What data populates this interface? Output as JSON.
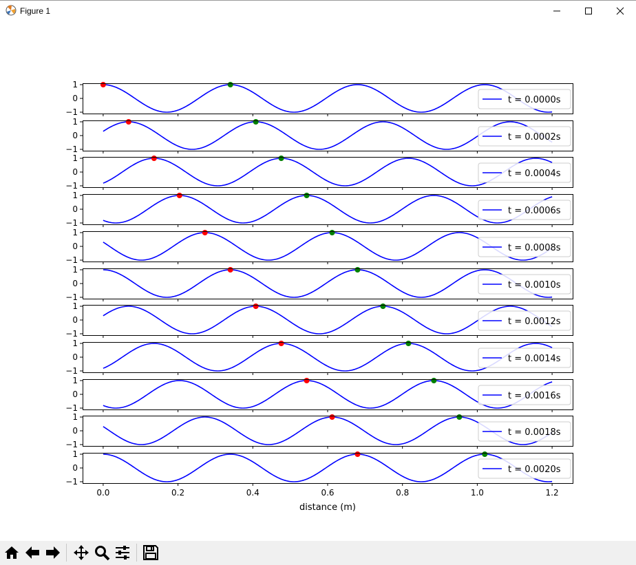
{
  "window": {
    "title": "Figure 1",
    "controls": [
      "minimize",
      "maximize",
      "close"
    ]
  },
  "toolbar": {
    "buttons": [
      {
        "name": "home",
        "icon": "home-icon"
      },
      {
        "name": "back",
        "icon": "arrow-left-icon"
      },
      {
        "name": "forward",
        "icon": "arrow-right-icon"
      },
      {
        "name": "pan",
        "icon": "move-icon"
      },
      {
        "name": "zoom",
        "icon": "magnifier-icon"
      },
      {
        "name": "configure-subplots",
        "icon": "sliders-icon"
      },
      {
        "name": "save",
        "icon": "floppy-disk-icon"
      }
    ]
  },
  "chart_data": {
    "type": "line",
    "xlabel": "distance (m)",
    "xlim": [
      -0.055,
      1.255
    ],
    "ylim": [
      -1.1,
      1.1
    ],
    "xticks": [
      0.0,
      0.2,
      0.4,
      0.6,
      0.8,
      1.0,
      1.2
    ],
    "xtick_labels": [
      "0.0",
      "0.2",
      "0.4",
      "0.6",
      "0.8",
      "1.0",
      "1.2"
    ],
    "yticks": [
      1,
      0,
      -1
    ],
    "ytick_labels": [
      "1",
      "0",
      "−1"
    ],
    "grid": false,
    "legend_position": "right",
    "line_color": "#0000ff",
    "marker_colors": {
      "first_crest": "#ff0000",
      "second_crest": "#008000"
    },
    "wave": {
      "x_range": [
        0,
        1.2
      ],
      "wavelength_m": 0.34,
      "speed_m_per_s": 340
    },
    "panels": [
      {
        "t_label": "t = 0.0000s",
        "t": 0.0,
        "red_x": 0.0,
        "green_x": 0.34
      },
      {
        "t_label": "t = 0.0002s",
        "t": 0.0002,
        "red_x": 0.068,
        "green_x": 0.408
      },
      {
        "t_label": "t = 0.0004s",
        "t": 0.0004,
        "red_x": 0.136,
        "green_x": 0.476
      },
      {
        "t_label": "t = 0.0006s",
        "t": 0.0006,
        "red_x": 0.204,
        "green_x": 0.544
      },
      {
        "t_label": "t = 0.0008s",
        "t": 0.0008,
        "red_x": 0.272,
        "green_x": 0.612
      },
      {
        "t_label": "t = 0.0010s",
        "t": 0.001,
        "red_x": 0.34,
        "green_x": 0.68
      },
      {
        "t_label": "t = 0.0012s",
        "t": 0.0012,
        "red_x": 0.408,
        "green_x": 0.748
      },
      {
        "t_label": "t = 0.0014s",
        "t": 0.0014,
        "red_x": 0.476,
        "green_x": 0.816
      },
      {
        "t_label": "t = 0.0016s",
        "t": 0.0016,
        "red_x": 0.544,
        "green_x": 0.884
      },
      {
        "t_label": "t = 0.0018s",
        "t": 0.0018,
        "red_x": 0.612,
        "green_x": 0.952
      },
      {
        "t_label": "t = 0.0020s",
        "t": 0.002,
        "red_x": 0.68,
        "green_x": 1.02
      }
    ]
  }
}
